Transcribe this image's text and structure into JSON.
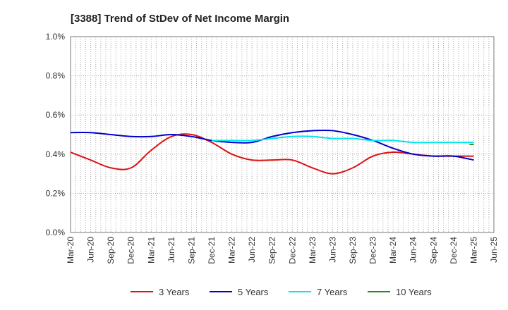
{
  "chart_data": {
    "type": "line",
    "title": "[3388]  Trend of StDev of Net Income Margin",
    "xlabel": "",
    "ylabel": "",
    "ylim": [
      0,
      1.0
    ],
    "y_ticks": [
      "0.0%",
      "0.2%",
      "0.4%",
      "0.6%",
      "0.8%",
      "1.0%"
    ],
    "y_tick_values": [
      0,
      0.2,
      0.4,
      0.6,
      0.8,
      1.0
    ],
    "x_tick_labels": [
      "Mar-20",
      "Jun-20",
      "Sep-20",
      "Dec-20",
      "Mar-21",
      "Jun-21",
      "Sep-21",
      "Dec-21",
      "Mar-22",
      "Jun-22",
      "Sep-22",
      "Dec-22",
      "Mar-23",
      "Jun-23",
      "Sep-23",
      "Dec-23",
      "Mar-24",
      "Jun-24",
      "Sep-24",
      "Dec-24",
      "Mar-25",
      "Jun-25"
    ],
    "grid": true,
    "legend_position": "bottom",
    "series": [
      {
        "name": "3 Years",
        "color": "#dd1111",
        "values": [
          0.41,
          0.37,
          0.33,
          0.33,
          0.42,
          0.49,
          0.5,
          0.46,
          0.4,
          0.37,
          0.37,
          0.37,
          0.33,
          0.3,
          0.33,
          0.39,
          0.41,
          0.4,
          0.39,
          0.39,
          0.39
        ]
      },
      {
        "name": "5 Years",
        "color": "#0000cc",
        "values": [
          0.51,
          0.51,
          0.5,
          0.49,
          0.49,
          0.5,
          0.49,
          0.47,
          0.46,
          0.46,
          0.49,
          0.51,
          0.52,
          0.52,
          0.5,
          0.47,
          0.43,
          0.4,
          0.39,
          0.39,
          0.37
        ]
      },
      {
        "name": "7 Years",
        "color": "#00e5ee",
        "values": [
          null,
          null,
          null,
          null,
          null,
          null,
          null,
          0.47,
          0.47,
          0.47,
          0.48,
          0.49,
          0.49,
          0.48,
          0.48,
          0.47,
          0.47,
          0.46,
          0.46,
          0.46,
          0.46
        ]
      },
      {
        "name": "10 Years",
        "color": "#228b22",
        "values": [
          null,
          null,
          null,
          null,
          null,
          null,
          null,
          null,
          null,
          null,
          null,
          null,
          null,
          null,
          null,
          null,
          null,
          null,
          null,
          null,
          0.45
        ]
      }
    ]
  }
}
